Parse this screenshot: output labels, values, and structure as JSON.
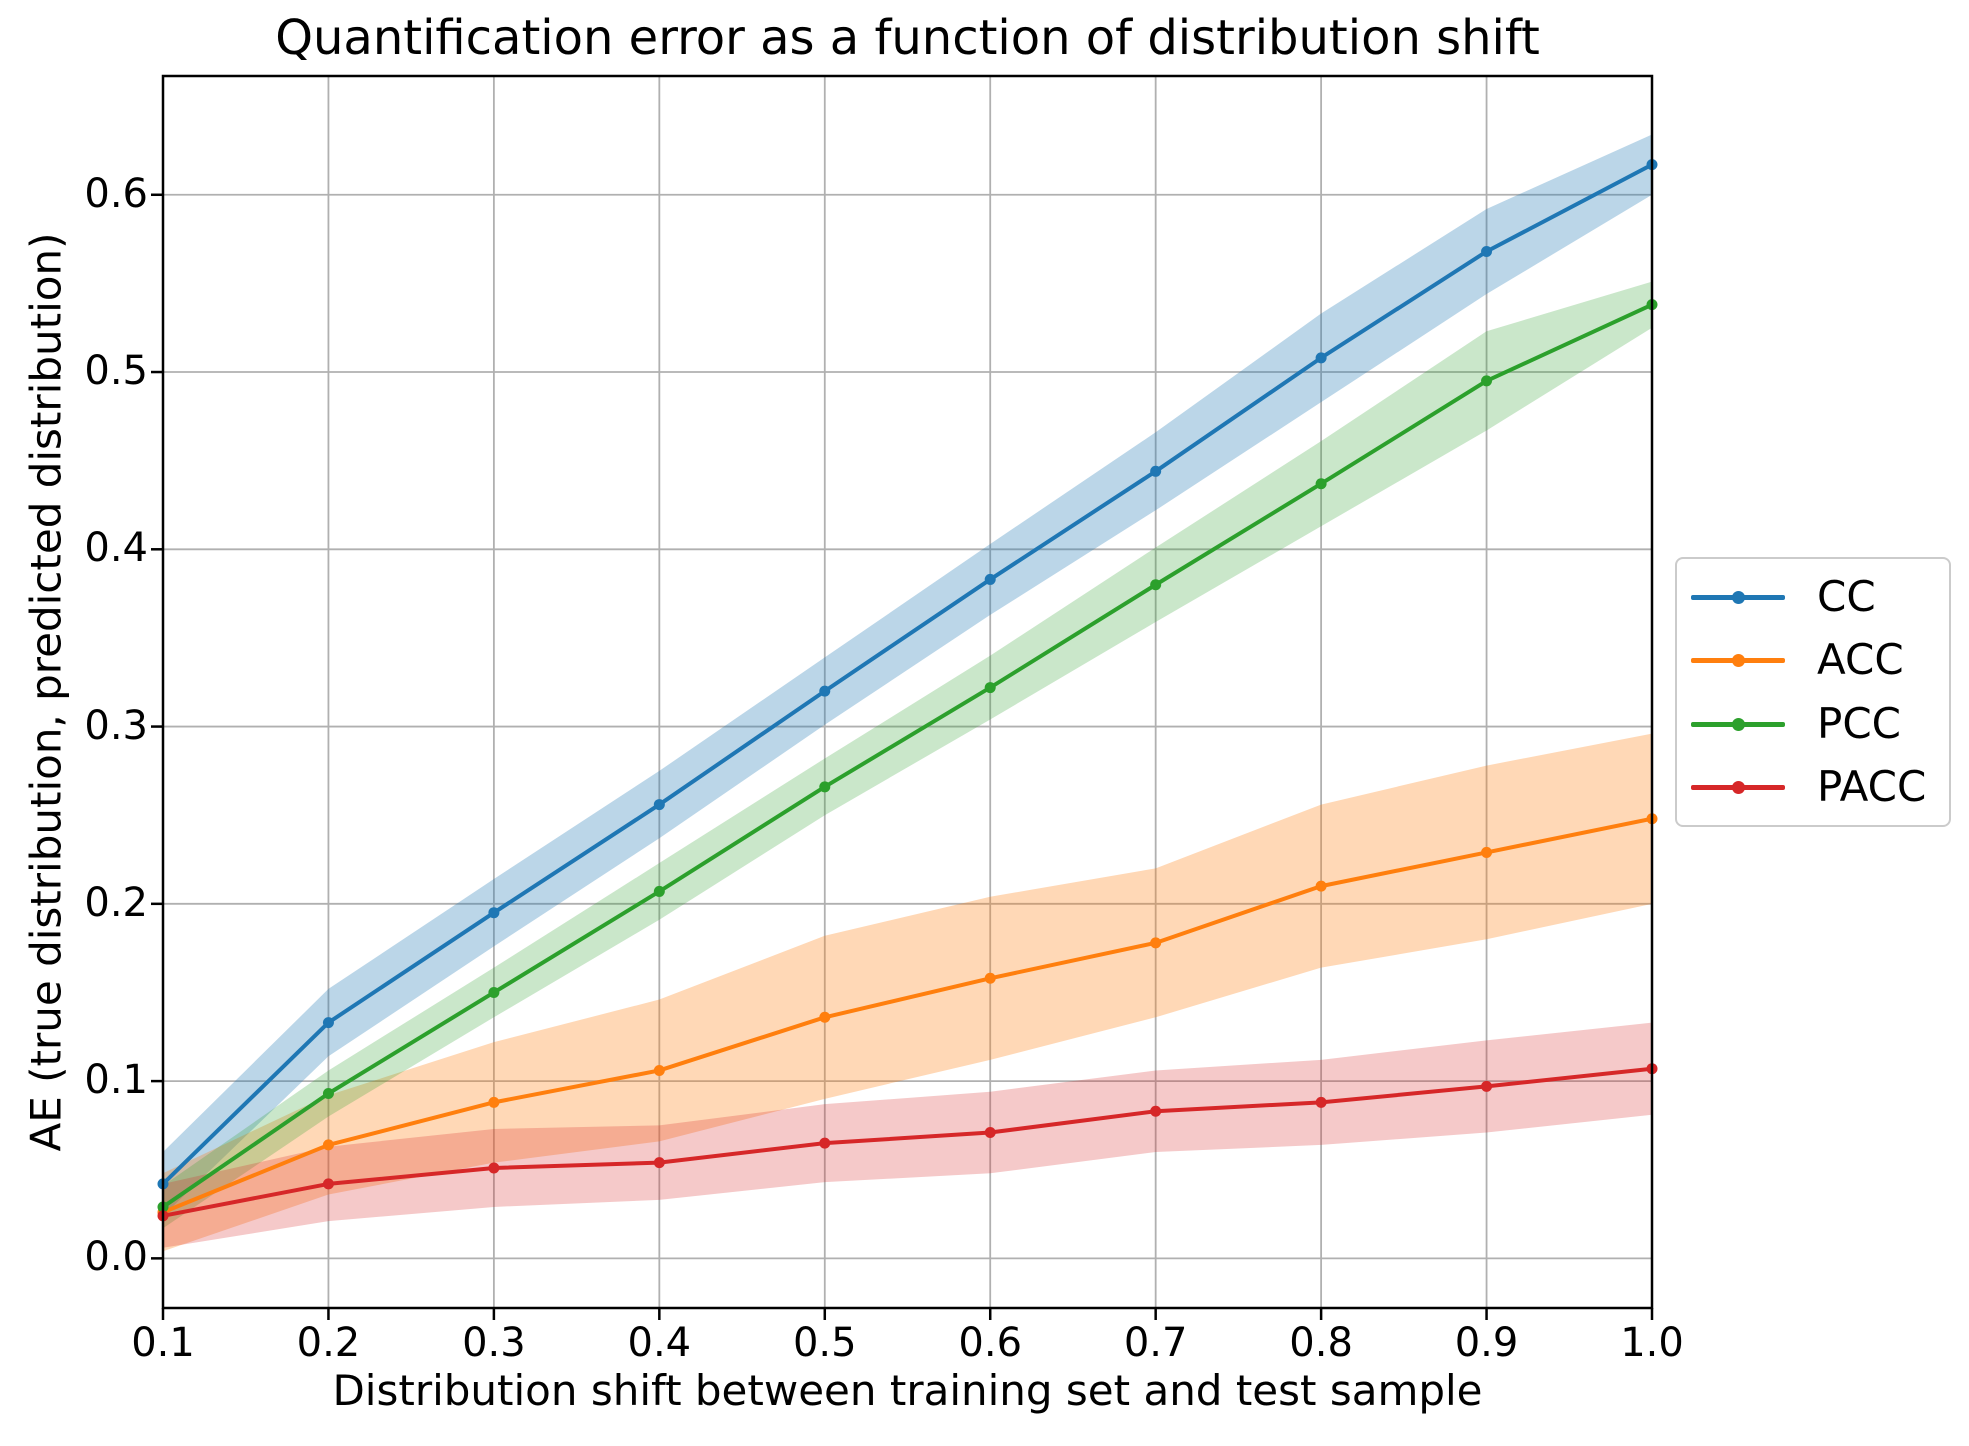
{
  "chart_data": {
    "type": "line",
    "title": "Quantification error as a function of distribution shift",
    "xlabel": "Distribution shift between training set and test sample",
    "ylabel": "AE (true distribution, predicted distribution)",
    "x": [
      0.1,
      0.2,
      0.3,
      0.4,
      0.5,
      0.6,
      0.7,
      0.8,
      0.9,
      1.0
    ],
    "series": [
      {
        "name": "CC",
        "color": "#1f77b4",
        "values": [
          0.042,
          0.133,
          0.195,
          0.256,
          0.32,
          0.383,
          0.444,
          0.508,
          0.568,
          0.617
        ],
        "band_delta": [
          0.018,
          0.019,
          0.019,
          0.019,
          0.019,
          0.02,
          0.022,
          0.025,
          0.024,
          0.017
        ],
        "band_alpha": 0.3
      },
      {
        "name": "ACC",
        "color": "#ff7f0e",
        "values": [
          0.026,
          0.064,
          0.088,
          0.106,
          0.136,
          0.158,
          0.178,
          0.21,
          0.229,
          0.248
        ],
        "band_delta": [
          0.022,
          0.028,
          0.034,
          0.04,
          0.046,
          0.046,
          0.042,
          0.046,
          0.049,
          0.048
        ],
        "band_alpha": 0.3
      },
      {
        "name": "PCC",
        "color": "#2ca02c",
        "values": [
          0.029,
          0.093,
          0.15,
          0.207,
          0.266,
          0.322,
          0.38,
          0.437,
          0.495,
          0.538
        ],
        "band_delta": [
          0.012,
          0.013,
          0.014,
          0.016,
          0.016,
          0.018,
          0.021,
          0.024,
          0.028,
          0.013
        ],
        "band_alpha": 0.25
      },
      {
        "name": "PACC",
        "color": "#d62728",
        "values": [
          0.024,
          0.042,
          0.051,
          0.054,
          0.065,
          0.071,
          0.083,
          0.088,
          0.097,
          0.107
        ],
        "band_delta": [
          0.018,
          0.021,
          0.022,
          0.021,
          0.022,
          0.023,
          0.023,
          0.024,
          0.026,
          0.026
        ],
        "band_alpha": 0.25
      }
    ],
    "xlim": [
      0.1,
      1.0
    ],
    "ylim": [
      -0.028,
      0.667
    ],
    "xticks": [
      0.1,
      0.2,
      0.3,
      0.4,
      0.5,
      0.6,
      0.7,
      0.8,
      0.9,
      1.0
    ],
    "xtick_labels": [
      "0.1",
      "0.2",
      "0.3",
      "0.4",
      "0.5",
      "0.6",
      "0.7",
      "0.8",
      "0.9",
      "1.0"
    ],
    "yticks": [
      0.0,
      0.1,
      0.2,
      0.3,
      0.4,
      0.5,
      0.6
    ],
    "ytick_labels": [
      "0.0",
      "0.1",
      "0.2",
      "0.3",
      "0.4",
      "0.5",
      "0.6"
    ],
    "grid": true,
    "grid_color": "#b0b0b0",
    "spine_color": "#000000",
    "background": "#ffffff",
    "legend_position": "center right outside"
  }
}
